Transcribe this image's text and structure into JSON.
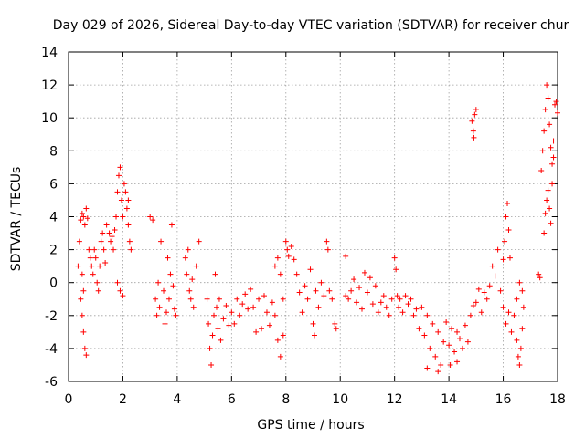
{
  "chart_data": {
    "type": "scatter",
    "title": "Day 029 of 2026, Sidereal Day-to-day VTEC variation (SDTVAR) for receiver chur",
    "xlabel": "GPS time / hours",
    "ylabel": "SDTVAR / TECUs",
    "xlim": [
      0,
      18
    ],
    "ylim": [
      -6,
      14
    ],
    "xticks": [
      0,
      2,
      4,
      6,
      8,
      10,
      12,
      14,
      16,
      18
    ],
    "yticks": [
      -6,
      -4,
      -2,
      0,
      2,
      4,
      6,
      8,
      10,
      12,
      14
    ],
    "grid": true,
    "marker": "+",
    "color": "#ff0000",
    "series": [
      {
        "name": "SDTVAR",
        "points": [
          [
            0.35,
            1.0
          ],
          [
            0.4,
            2.5
          ],
          [
            0.45,
            3.8
          ],
          [
            0.5,
            4.2
          ],
          [
            0.55,
            4.0
          ],
          [
            0.6,
            3.5
          ],
          [
            0.65,
            4.5
          ],
          [
            0.7,
            3.9
          ],
          [
            0.75,
            2.0
          ],
          [
            0.8,
            1.5
          ],
          [
            0.45,
            -1.0
          ],
          [
            0.5,
            -2.0
          ],
          [
            0.55,
            -3.0
          ],
          [
            0.6,
            -4.0
          ],
          [
            0.65,
            -4.4
          ],
          [
            0.5,
            0.5
          ],
          [
            0.55,
            -0.5
          ],
          [
            0.85,
            1.0
          ],
          [
            0.9,
            0.5
          ],
          [
            0.95,
            2.0
          ],
          [
            1.0,
            1.5
          ],
          [
            1.05,
            0.0
          ],
          [
            1.1,
            -0.5
          ],
          [
            1.15,
            1.0
          ],
          [
            1.2,
            2.5
          ],
          [
            1.25,
            3.0
          ],
          [
            1.3,
            2.0
          ],
          [
            1.35,
            1.2
          ],
          [
            1.4,
            3.5
          ],
          [
            1.5,
            3.0
          ],
          [
            1.55,
            2.5
          ],
          [
            1.6,
            2.8
          ],
          [
            1.65,
            2.0
          ],
          [
            1.7,
            3.2
          ],
          [
            1.75,
            4.0
          ],
          [
            1.8,
            5.5
          ],
          [
            1.85,
            6.5
          ],
          [
            1.9,
            7.0
          ],
          [
            1.95,
            5.0
          ],
          [
            2.0,
            4.0
          ],
          [
            2.05,
            6.0
          ],
          [
            2.1,
            5.5
          ],
          [
            2.15,
            4.5
          ],
          [
            2.2,
            3.5
          ],
          [
            2.25,
            2.5
          ],
          [
            2.3,
            2.0
          ],
          [
            2.2,
            5.0
          ],
          [
            1.8,
            0.0
          ],
          [
            1.9,
            -0.5
          ],
          [
            2.0,
            -0.8
          ],
          [
            3.0,
            4.0
          ],
          [
            3.1,
            3.8
          ],
          [
            3.2,
            -1.0
          ],
          [
            3.25,
            -2.0
          ],
          [
            3.3,
            0.0
          ],
          [
            3.35,
            -1.5
          ],
          [
            3.4,
            2.5
          ],
          [
            3.5,
            -0.5
          ],
          [
            3.55,
            -2.5
          ],
          [
            3.6,
            -1.8
          ],
          [
            3.65,
            1.5
          ],
          [
            3.7,
            -1.0
          ],
          [
            3.75,
            0.5
          ],
          [
            3.8,
            3.5
          ],
          [
            3.85,
            -0.2
          ],
          [
            3.9,
            -1.6
          ],
          [
            3.95,
            -2.0
          ],
          [
            4.3,
            1.5
          ],
          [
            4.35,
            0.5
          ],
          [
            4.4,
            2.0
          ],
          [
            4.45,
            -0.5
          ],
          [
            4.5,
            -1.0
          ],
          [
            4.55,
            0.2
          ],
          [
            4.6,
            -1.5
          ],
          [
            4.7,
            1.0
          ],
          [
            4.8,
            2.5
          ],
          [
            5.1,
            -1.0
          ],
          [
            5.15,
            -2.5
          ],
          [
            5.2,
            -4.0
          ],
          [
            5.25,
            -5.0
          ],
          [
            5.3,
            -3.2
          ],
          [
            5.35,
            -2.0
          ],
          [
            5.4,
            0.5
          ],
          [
            5.45,
            -1.5
          ],
          [
            5.5,
            -2.8
          ],
          [
            5.55,
            -1.0
          ],
          [
            5.6,
            -3.5
          ],
          [
            5.7,
            -2.2
          ],
          [
            5.8,
            -1.4
          ],
          [
            5.9,
            -2.6
          ],
          [
            6.0,
            -1.8
          ],
          [
            6.1,
            -2.5
          ],
          [
            6.2,
            -1.0
          ],
          [
            6.3,
            -2.0
          ],
          [
            6.4,
            -1.3
          ],
          [
            6.5,
            -0.7
          ],
          [
            6.6,
            -1.6
          ],
          [
            6.7,
            -0.4
          ],
          [
            6.8,
            -1.5
          ],
          [
            6.9,
            -3.0
          ],
          [
            7.0,
            -1.0
          ],
          [
            7.1,
            -2.8
          ],
          [
            7.2,
            -0.8
          ],
          [
            7.3,
            -1.8
          ],
          [
            7.4,
            -2.6
          ],
          [
            7.5,
            -1.2
          ],
          [
            7.6,
            -2.0
          ],
          [
            7.7,
            -3.5
          ],
          [
            7.8,
            -4.5
          ],
          [
            7.9,
            -3.2
          ],
          [
            7.6,
            1.0
          ],
          [
            7.7,
            1.5
          ],
          [
            7.8,
            0.5
          ],
          [
            7.9,
            -1.0
          ],
          [
            8.0,
            2.5
          ],
          [
            8.05,
            2.0
          ],
          [
            8.1,
            1.6
          ],
          [
            8.2,
            2.2
          ],
          [
            8.3,
            1.4
          ],
          [
            8.4,
            0.5
          ],
          [
            8.5,
            -0.6
          ],
          [
            8.6,
            -1.8
          ],
          [
            8.7,
            -0.2
          ],
          [
            8.8,
            -1.0
          ],
          [
            8.9,
            0.8
          ],
          [
            9.0,
            -2.5
          ],
          [
            9.05,
            -3.2
          ],
          [
            9.1,
            -0.5
          ],
          [
            9.2,
            -1.5
          ],
          [
            9.3,
            0.0
          ],
          [
            9.4,
            -0.8
          ],
          [
            9.5,
            2.5
          ],
          [
            9.55,
            2.0
          ],
          [
            9.6,
            -0.5
          ],
          [
            9.7,
            -1.0
          ],
          [
            9.8,
            -2.5
          ],
          [
            9.85,
            -2.8
          ],
          [
            10.2,
            1.6
          ],
          [
            10.2,
            -0.8
          ],
          [
            10.3,
            -1.0
          ],
          [
            10.4,
            -0.5
          ],
          [
            10.5,
            0.2
          ],
          [
            10.6,
            -1.2
          ],
          [
            10.7,
            -0.3
          ],
          [
            10.8,
            -1.6
          ],
          [
            10.9,
            0.6
          ],
          [
            11.0,
            -0.6
          ],
          [
            11.1,
            0.3
          ],
          [
            11.2,
            -1.3
          ],
          [
            11.3,
            -0.2
          ],
          [
            11.4,
            -1.8
          ],
          [
            11.5,
            -1.2
          ],
          [
            11.6,
            -0.8
          ],
          [
            11.7,
            -1.5
          ],
          [
            11.8,
            -2.0
          ],
          [
            11.9,
            -1.0
          ],
          [
            12.0,
            1.5
          ],
          [
            12.05,
            0.8
          ],
          [
            12.1,
            -0.8
          ],
          [
            12.15,
            -1.5
          ],
          [
            12.2,
            -1.0
          ],
          [
            12.3,
            -1.8
          ],
          [
            12.4,
            -0.8
          ],
          [
            12.5,
            -1.3
          ],
          [
            12.6,
            -1.0
          ],
          [
            12.7,
            -2.0
          ],
          [
            12.8,
            -1.6
          ],
          [
            12.9,
            -2.8
          ],
          [
            13.0,
            -1.5
          ],
          [
            13.1,
            -3.2
          ],
          [
            13.2,
            -2.0
          ],
          [
            13.3,
            -4.0
          ],
          [
            13.4,
            -2.5
          ],
          [
            13.5,
            -4.5
          ],
          [
            13.6,
            -3.0
          ],
          [
            13.7,
            -5.0
          ],
          [
            13.8,
            -3.6
          ],
          [
            13.9,
            -2.4
          ],
          [
            14.0,
            -3.8
          ],
          [
            14.1,
            -2.8
          ],
          [
            14.2,
            -4.2
          ],
          [
            14.3,
            -3.0
          ],
          [
            14.4,
            -3.4
          ],
          [
            14.5,
            -4.0
          ],
          [
            14.6,
            -2.6
          ],
          [
            14.7,
            -3.6
          ],
          [
            14.8,
            -2.0
          ],
          [
            14.9,
            -1.4
          ],
          [
            13.2,
            -5.2
          ],
          [
            13.6,
            -5.4
          ],
          [
            14.05,
            -5.0
          ],
          [
            14.3,
            -4.8
          ],
          [
            14.85,
            9.8
          ],
          [
            14.9,
            9.2
          ],
          [
            14.95,
            10.2
          ],
          [
            15.0,
            10.5
          ],
          [
            14.92,
            8.8
          ],
          [
            15.0,
            -1.2
          ],
          [
            15.1,
            -0.4
          ],
          [
            15.2,
            -1.8
          ],
          [
            15.3,
            -0.6
          ],
          [
            15.4,
            -1.0
          ],
          [
            15.5,
            -0.2
          ],
          [
            15.6,
            1.0
          ],
          [
            15.7,
            0.4
          ],
          [
            15.8,
            2.0
          ],
          [
            15.9,
            -0.5
          ],
          [
            16.0,
            1.4
          ],
          [
            16.05,
            2.5
          ],
          [
            16.1,
            4.0
          ],
          [
            16.15,
            4.8
          ],
          [
            16.2,
            3.2
          ],
          [
            16.25,
            1.5
          ],
          [
            16.0,
            -1.5
          ],
          [
            16.1,
            -2.5
          ],
          [
            16.2,
            -1.8
          ],
          [
            16.3,
            -3.0
          ],
          [
            16.4,
            -2.0
          ],
          [
            16.5,
            -3.5
          ],
          [
            16.55,
            -4.5
          ],
          [
            16.6,
            -5.0
          ],
          [
            16.65,
            -4.0
          ],
          [
            16.7,
            -2.8
          ],
          [
            16.75,
            -1.5
          ],
          [
            16.5,
            -1.0
          ],
          [
            16.6,
            0.0
          ],
          [
            16.7,
            -0.5
          ],
          [
            17.3,
            0.5
          ],
          [
            17.35,
            0.3
          ],
          [
            17.4,
            6.8
          ],
          [
            17.45,
            8.0
          ],
          [
            17.5,
            9.2
          ],
          [
            17.55,
            10.5
          ],
          [
            17.6,
            12.0
          ],
          [
            17.65,
            11.2
          ],
          [
            17.7,
            9.6
          ],
          [
            17.75,
            8.2
          ],
          [
            17.8,
            7.2
          ],
          [
            17.85,
            8.6
          ],
          [
            17.9,
            10.8
          ],
          [
            17.95,
            11.0
          ],
          [
            18.0,
            10.3
          ],
          [
            17.5,
            3.0
          ],
          [
            17.55,
            4.2
          ],
          [
            17.6,
            5.0
          ],
          [
            17.65,
            5.6
          ],
          [
            17.7,
            4.5
          ],
          [
            17.75,
            3.6
          ],
          [
            17.8,
            6.0
          ],
          [
            17.85,
            7.6
          ]
        ]
      }
    ]
  }
}
